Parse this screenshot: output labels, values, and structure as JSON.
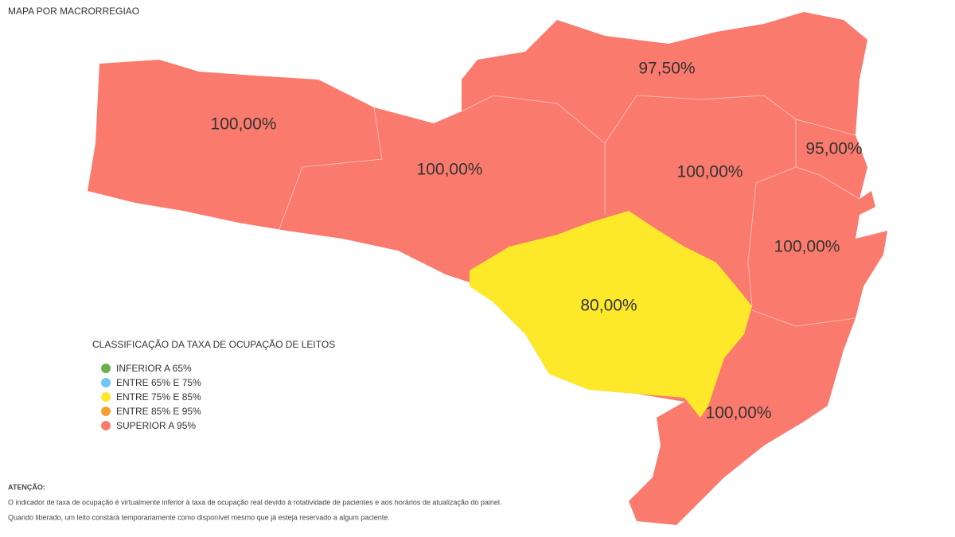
{
  "title": "MAPA POR MACRORREGIAO",
  "regions": [
    "100,00%",
    "100,00%",
    "97,50%",
    "100,00%",
    "95,00%",
    "100,00%",
    "80,00%",
    "100,00%"
  ],
  "legend": {
    "title": "CLASSIFICAÇÃO DA TAXA DE OCUPAÇÃO DE LEITOS",
    "items": [
      "INFERIOR A 65%",
      "ENTRE 65% E 75%",
      "ENTRE 75% E 85%",
      "ENTRE 85% E 95%",
      "SUPERIOR A 95%"
    ]
  },
  "notice": {
    "heading": "ATENÇÃO:",
    "lines": [
      "O indicador de taxa de ocupação é virtualmente inferior à taxa de ocupação real devido à rotatividade de pacientes e aos horários de atualização do painel.",
      "Quando liberado, um leito constará temporariamente como disponível mesmo que já esteja reservado a algum paciente."
    ]
  }
}
